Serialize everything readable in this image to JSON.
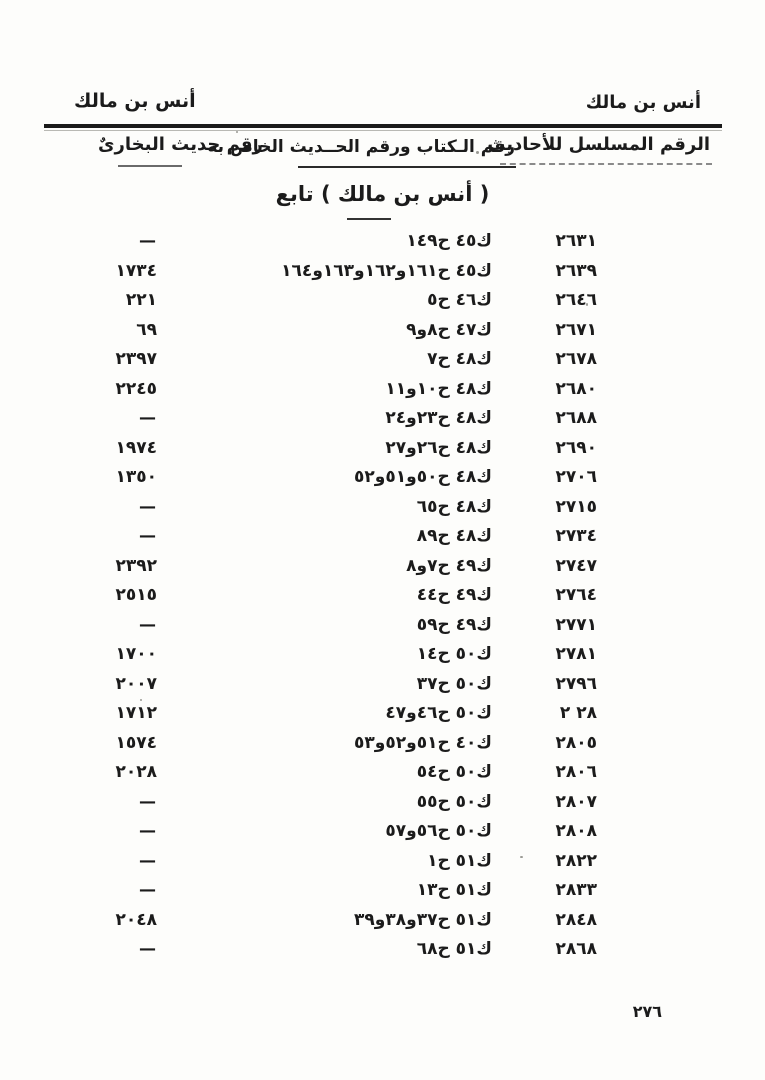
{
  "header": {
    "top_right_title": "أنس بن مالك",
    "top_left_title": "أنس بن مالك",
    "col_serial": "الرقم المسلسل للأحاديث",
    "col_kitab": "رقم الـكتاب ورقم الحــديث الخاص به",
    "col_bukhari": "رقم حديث البخارىٌ",
    "subtitle": "( أنس بن مالك ) تابع"
  },
  "table": {
    "rows": [
      {
        "serial": "٢٦٣١",
        "ref": "ك٤٥ ح١٤٩",
        "bukhari": "—"
      },
      {
        "serial": "٢٦٣٩",
        "ref": "ك٤٥ ح١٦١و١٦٢و١٦٣و١٦٤",
        "bukhari": "١٧٣٤"
      },
      {
        "serial": "٢٦٤٦",
        "ref": "ك٤٦ ح٥",
        "bukhari": "٢٢١"
      },
      {
        "serial": "٢٦٧١",
        "ref": "ك٤٧ ح٨و٩",
        "bukhari": "٦٩"
      },
      {
        "serial": "٢٦٧٨",
        "ref": "ك٤٨ ح٧",
        "bukhari": "٢٣٩٧"
      },
      {
        "serial": "٢٦٨٠",
        "ref": "ك٤٨ ح١٠و١١",
        "bukhari": "٢٢٤٥"
      },
      {
        "serial": "٢٦٨٨",
        "ref": "ك٤٨ ح٢٣و٢٤",
        "bukhari": "—"
      },
      {
        "serial": "٢٦٩٠",
        "ref": "ك٤٨ ح٢٦و٢٧",
        "bukhari": "١٩٧٤"
      },
      {
        "serial": "٢٧٠٦",
        "ref": "ك٤٨ ح٥٠و٥١و٥٢",
        "bukhari": "١٣٥٠"
      },
      {
        "serial": "٢٧١٥",
        "ref": "ك٤٨ ح٦٥",
        "bukhari": "—"
      },
      {
        "serial": "٢٧٣٤",
        "ref": "ك٤٨ ح٨٩",
        "bukhari": "—"
      },
      {
        "serial": "٢٧٤٧",
        "ref": "ك٤٩ ح٧و٨",
        "bukhari": "٢٣٩٢"
      },
      {
        "serial": "٢٧٦٤",
        "ref": "ك٤٩ ح٤٤",
        "bukhari": "٢٥١٥"
      },
      {
        "serial": "٢٧٧١",
        "ref": "ك٤٩ ح٥٩",
        "bukhari": "—"
      },
      {
        "serial": "٢٧٨١",
        "ref": "ك٥٠ ح١٤",
        "bukhari": "١٧٠٠"
      },
      {
        "serial": "٢٧٩٦",
        "ref": "ك٥٠ ح٣٧",
        "bukhari": "٢٠٠٧"
      },
      {
        "serial": "٢٨ ٢",
        "ref": "ك٥٠ ح٤٦و٤٧",
        "bukhari": "١٧١٢"
      },
      {
        "serial": "٢٨٠٥",
        "ref": "ك٤٠ ح٥١و٥٢و٥٣",
        "bukhari": "١٥٧٤"
      },
      {
        "serial": "٢٨٠٦",
        "ref": "ك٥٠ ح٥٤",
        "bukhari": "٢٠٢٨"
      },
      {
        "serial": "٢٨٠٧",
        "ref": "ك٥٠ ح٥٥",
        "bukhari": "—"
      },
      {
        "serial": "٢٨٠٨",
        "ref": "ك٥٠ ح٥٦و٥٧",
        "bukhari": "—"
      },
      {
        "serial": "٢٨٢٢",
        "ref": "ك٥١ ح١",
        "bukhari": "—"
      },
      {
        "serial": "٢٨٣٣",
        "ref": "ك٥١ ح١٣",
        "bukhari": "—"
      },
      {
        "serial": "٢٨٤٨",
        "ref": "ك٥١ ح٣٧و٣٨و٣٩",
        "bukhari": "٢٠٤٨"
      },
      {
        "serial": "٢٨٦٨",
        "ref": "ك٥١ ح٦٨",
        "bukhari": "—"
      }
    ]
  },
  "footer": {
    "page_number": "٢٧٦"
  },
  "colors": {
    "ink": "#1b1b1b",
    "paper": "#fdfdfb"
  }
}
